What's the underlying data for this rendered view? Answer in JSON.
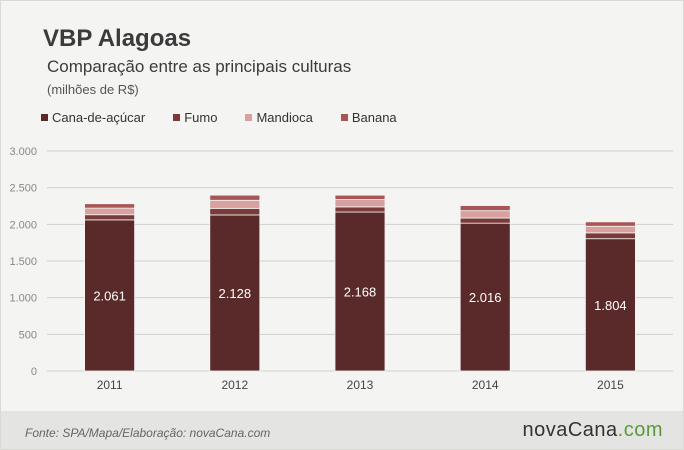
{
  "title": "VBP Alagoas",
  "subtitle": "Comparação entre as principais culturas",
  "unit": "(milhões de R$)",
  "source": "Fonte: SPA/Mapa/Elaboração: novaCana.com",
  "logo": {
    "part_a": "novaCana",
    "part_b": ".com"
  },
  "colors": {
    "cana": "#5a2a2a",
    "fumo": "#7a3a3a",
    "mandioca": "#d9a0a0",
    "banana": "#a85555",
    "grid": "#d0d0cc",
    "axis_text": "#888888"
  },
  "chart_data": {
    "type": "bar",
    "stacked": true,
    "categories": [
      "2011",
      "2012",
      "2013",
      "2014",
      "2015"
    ],
    "series": [
      {
        "name": "Cana-de-açúcar",
        "color_key": "cana",
        "values": [
          2061,
          2128,
          2168,
          2016,
          1804
        ],
        "labels": [
          "2.061",
          "2.128",
          "2.168",
          "2.016",
          "1.804"
        ]
      },
      {
        "name": "Fumo",
        "color_key": "fumo",
        "values": [
          70,
          90,
          70,
          70,
          80
        ]
      },
      {
        "name": "Mandioca",
        "color_key": "mandioca",
        "values": [
          90,
          110,
          100,
          100,
          90
        ]
      },
      {
        "name": "Banana",
        "color_key": "banana",
        "values": [
          60,
          70,
          60,
          70,
          60
        ]
      }
    ],
    "ylim": [
      0,
      3000
    ],
    "yticks": [
      0,
      500,
      1000,
      1500,
      2000,
      2500,
      3000
    ],
    "ytick_labels": [
      "0",
      "500",
      "1.000",
      "1.500",
      "2.000",
      "2.500",
      "3.000"
    ],
    "grid": true,
    "legend_position": "top-left"
  }
}
